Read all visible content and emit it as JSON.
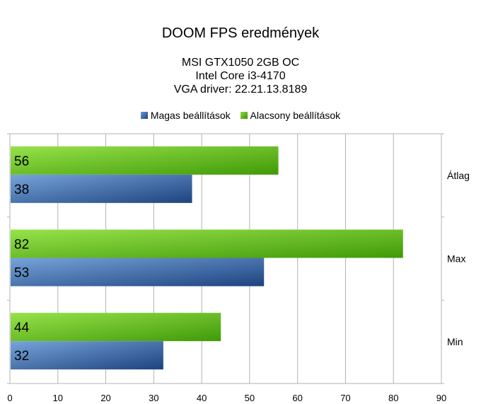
{
  "chart_data": {
    "type": "bar",
    "orientation": "horizontal",
    "title": "DOOM FPS eredmények",
    "subtitle_lines": [
      "MSI GTX1050 2GB OC",
      "Intel Core i3-4170",
      "VGA driver: 22.21.13.8189"
    ],
    "categories": [
      "Átlag",
      "Max",
      "Min"
    ],
    "series": [
      {
        "name": "Magas beállítások",
        "values": [
          38,
          53,
          32
        ],
        "color": "#3c66a8"
      },
      {
        "name": "Alacsony beállítások",
        "values": [
          56,
          82,
          44
        ],
        "color": "#5fb91c"
      }
    ],
    "xlim": [
      0,
      90
    ],
    "xticks": [
      0,
      10,
      20,
      30,
      40,
      50,
      60,
      70,
      80,
      90
    ],
    "grid": "vertical",
    "legend_position": "top",
    "data_labels": true
  }
}
